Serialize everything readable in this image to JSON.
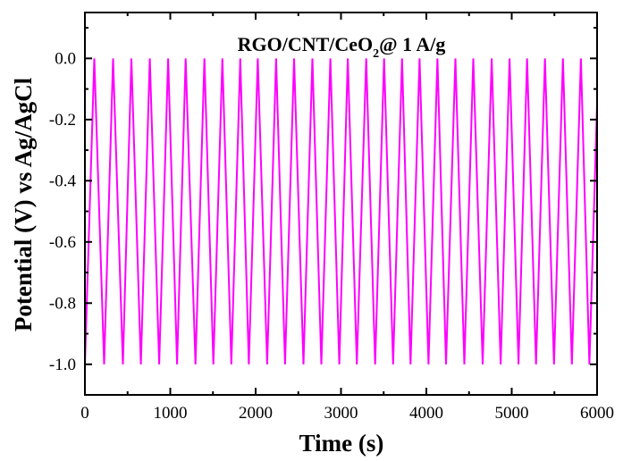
{
  "chart_data": {
    "type": "line",
    "title": {
      "main": "RGO/CNT/CeO",
      "subscript": "2",
      "suffix": "@ 1 A/g"
    },
    "xlabel": "Time (s)",
    "ylabel": "Potential (V) vs Ag/AgCl",
    "xlim": [
      0,
      6000
    ],
    "ylim": [
      -1.1,
      0.15
    ],
    "xticks": [
      0,
      1000,
      2000,
      3000,
      4000,
      5000,
      6000
    ],
    "yticks": [
      0.0,
      -0.2,
      -0.4,
      -0.6,
      -0.8,
      -1.0
    ],
    "ytick_labels": [
      "0.0",
      "-0.2",
      "-0.4",
      "-0.6",
      "-0.8",
      "-1.0"
    ],
    "grid": false,
    "series": [
      {
        "color": "#ff00ff",
        "x": [
          0,
          110,
          225,
          330,
          445,
          545,
          655,
          760,
          870,
          975,
          1080,
          1180,
          1295,
          1400,
          1505,
          1610,
          1715,
          1820,
          1920,
          2025,
          2135,
          2240,
          2345,
          2450,
          2560,
          2665,
          2770,
          2875,
          2980,
          3080,
          3185,
          3295,
          3400,
          3505,
          3610,
          3715,
          3815,
          3920,
          4025,
          4130,
          4230,
          4340,
          4445,
          4550,
          4660,
          4765,
          4870,
          4975,
          5080,
          5180,
          5285,
          5390,
          5495,
          5600,
          5705,
          5810,
          5910,
          6000
        ],
        "y": [
          -1.0,
          0.0,
          -1.0,
          0.0,
          -1.0,
          0.0,
          -1.0,
          0.0,
          -1.0,
          0.0,
          -1.0,
          0.0,
          -1.0,
          0.0,
          -1.0,
          0.0,
          -1.0,
          0.0,
          -1.0,
          0.0,
          -1.0,
          0.0,
          -1.0,
          0.0,
          -1.0,
          0.0,
          -1.0,
          0.0,
          -1.0,
          0.0,
          -1.0,
          0.0,
          -1.0,
          0.0,
          -1.0,
          0.0,
          -1.0,
          0.0,
          -1.0,
          0.0,
          -1.0,
          0.0,
          -1.0,
          0.0,
          -1.0,
          0.0,
          -1.0,
          0.0,
          -1.0,
          0.0,
          -1.0,
          0.0,
          -1.0,
          0.0,
          -1.0,
          0.0,
          -1.0,
          -0.15
        ]
      }
    ]
  }
}
